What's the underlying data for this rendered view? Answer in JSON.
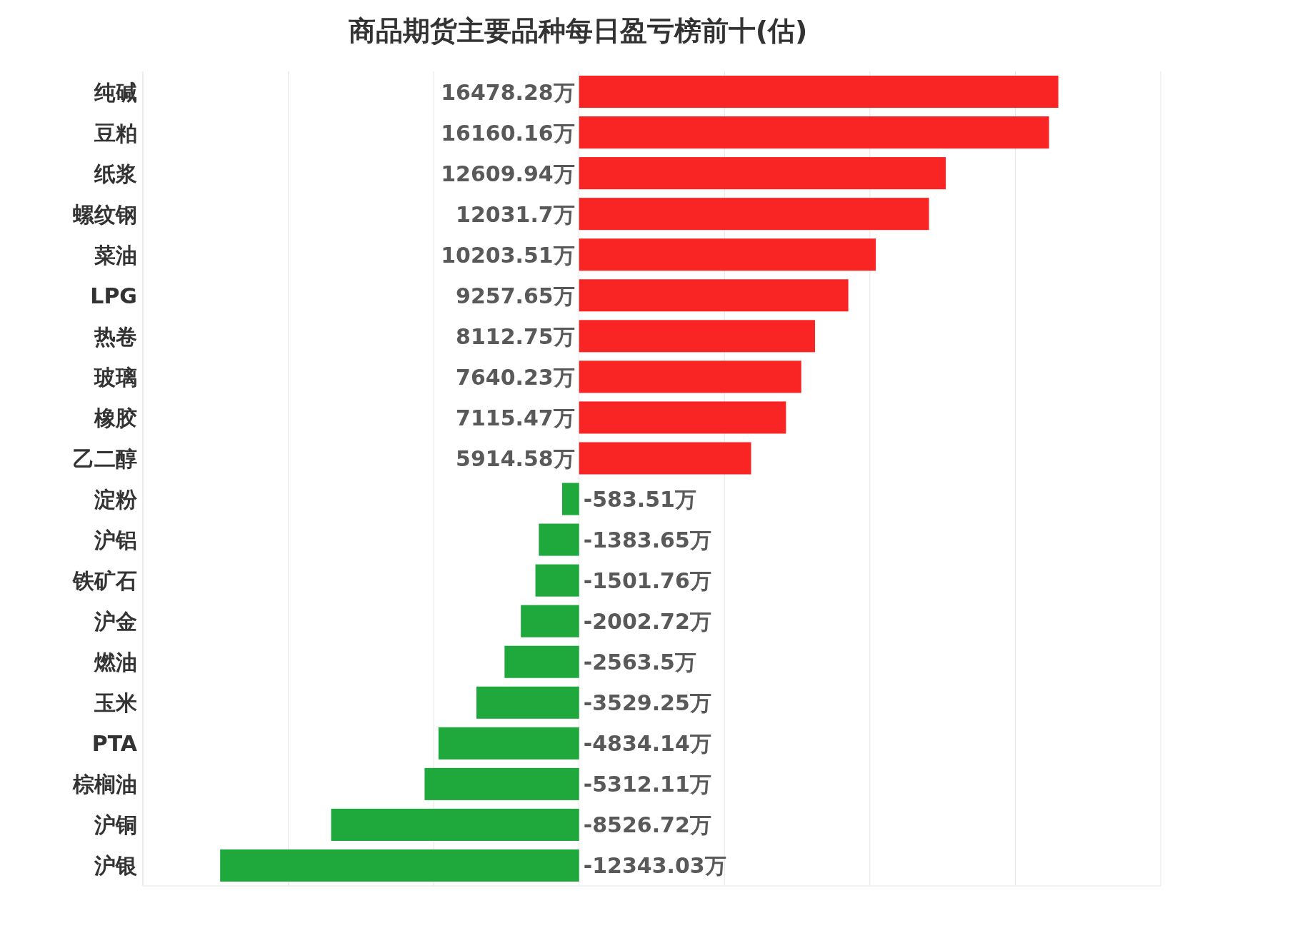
{
  "chart_data": {
    "type": "bar",
    "orientation": "horizontal",
    "title": "商品期货主要品种每日盈亏榜前十(估)",
    "categories": [
      "纯碱",
      "豆粕",
      "纸浆",
      "螺纹钢",
      "菜油",
      "LPG",
      "热卷",
      "玻璃",
      "橡胶",
      "乙二醇",
      "淀粉",
      "沪铝",
      "铁矿石",
      "沪金",
      "燃油",
      "玉米",
      "PTA",
      "棕榈油",
      "沪铜",
      "沪银"
    ],
    "values": [
      16478.28,
      16160.16,
      12609.94,
      12031.7,
      10203.51,
      9257.65,
      8112.75,
      7640.23,
      7115.47,
      5914.58,
      -583.51,
      -1383.65,
      -1501.76,
      -2002.72,
      -2563.5,
      -3529.25,
      -4834.14,
      -5312.11,
      -8526.72,
      -12343.03
    ],
    "value_labels": [
      "16478.28万",
      "16160.16万",
      "12609.94万",
      "12031.7万",
      "10203.51万",
      "9257.65万",
      "8112.75万",
      "7640.23万",
      "7115.47万",
      "5914.58万",
      "-583.51万",
      "-1383.65万",
      "-1501.76万",
      "-2002.72万",
      "-2563.5万",
      "-3529.25万",
      "-4834.14万",
      "-5312.11万",
      "-8526.72万",
      "-12343.03万"
    ],
    "colors": [
      "#f92424",
      "#f92424",
      "#f92424",
      "#f92424",
      "#f92424",
      "#f92424",
      "#f92424",
      "#f92424",
      "#f92424",
      "#f92424",
      "#1fa83c",
      "#1fa83c",
      "#1fa83c",
      "#1fa83c",
      "#1fa83c",
      "#1fa83c",
      "#1fa83c",
      "#1fa83c",
      "#1fa83c",
      "#1fa83c"
    ],
    "xlim": [
      -15000,
      20000
    ],
    "xticks": [
      {
        "value": -15000,
        "label": null
      },
      {
        "value": -10000,
        "label": null
      },
      {
        "value": -5000,
        "label": null
      },
      {
        "value": 0,
        "label": null
      },
      {
        "value": 5000,
        "label": null
      },
      {
        "value": 10000,
        "label": null
      },
      {
        "value": 15000,
        "label": null
      },
      {
        "value": 20000,
        "label": null
      }
    ],
    "grid": "x",
    "tick_labels": "y"
  }
}
